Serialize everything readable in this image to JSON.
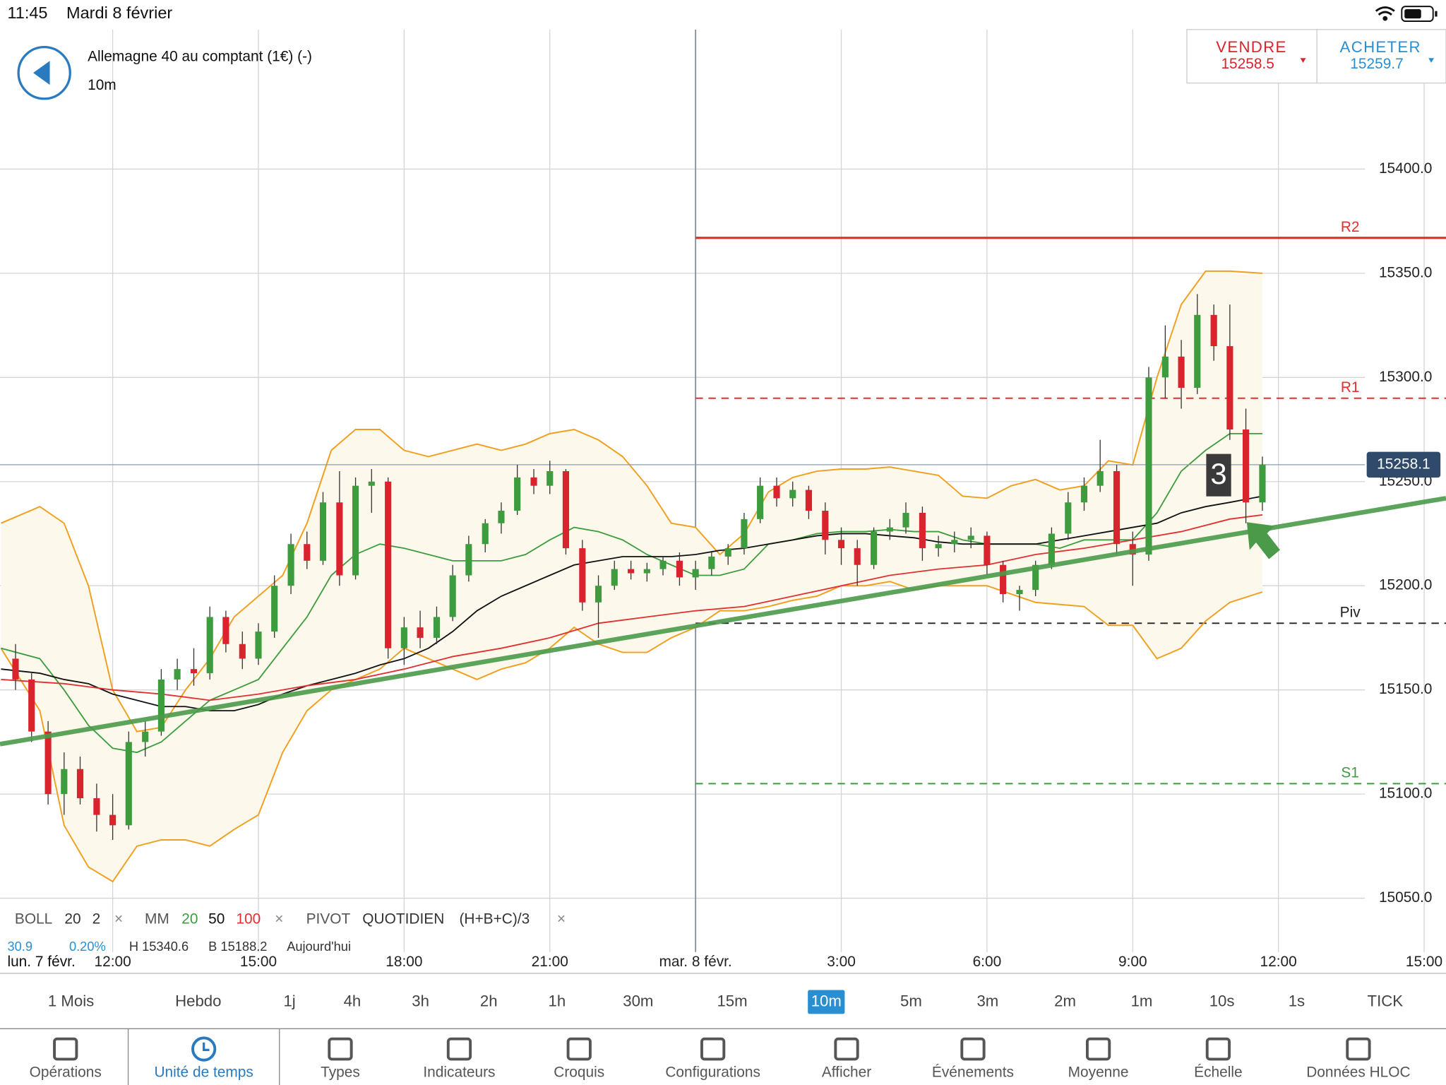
{
  "status_bar": {
    "time": "11:45",
    "date": "Mardi 8 février"
  },
  "header": {
    "instrument": "Allemagne 40 au comptant (1€) (-)",
    "timeframe": "10m"
  },
  "quote": {
    "sell_label": "VENDRE",
    "sell_price": "15258.5",
    "buy_label": "ACHETER",
    "buy_price": "15259.7"
  },
  "chart_data": {
    "type": "candlestick",
    "xlim": [
      9.68,
      39.45
    ],
    "ylim": [
      15025,
      15467
    ],
    "start_label": "lun. 7 févr.",
    "xticks": [
      {
        "value": 12,
        "label": "12:00"
      },
      {
        "value": 15,
        "label": "15:00"
      },
      {
        "value": 18,
        "label": "18:00"
      },
      {
        "value": 21,
        "label": "21:00"
      },
      {
        "value": 24,
        "label": "mar. 8 févr."
      },
      {
        "value": 27,
        "label": "3:00"
      },
      {
        "value": 30,
        "label": "6:00"
      },
      {
        "value": 33,
        "label": "9:00"
      },
      {
        "value": 36,
        "label": "12:00"
      },
      {
        "value": 39,
        "label": "15:00"
      }
    ],
    "yticks": [
      {
        "value": 15050,
        "label": "15050.0"
      },
      {
        "value": 15100,
        "label": "15100.0"
      },
      {
        "value": 15150,
        "label": "15150.0"
      },
      {
        "value": 15200,
        "label": "15200.0"
      },
      {
        "value": 15250,
        "label": "15250.0"
      },
      {
        "value": 15300,
        "label": "15300.0"
      },
      {
        "value": 15350,
        "label": "15350.0"
      },
      {
        "value": 15400,
        "label": "15400.0"
      }
    ],
    "grid": true,
    "up_color": "#3d9c3d",
    "down_color": "#d9232d",
    "x": [
      10,
      10.33,
      10.67,
      11,
      11.33,
      11.67,
      12,
      12.33,
      12.67,
      13,
      13.33,
      13.67,
      14,
      14.33,
      14.67,
      15,
      15.33,
      15.67,
      16,
      16.33,
      16.67,
      17,
      17.33,
      17.67,
      18,
      18.33,
      18.67,
      19,
      19.33,
      19.67,
      20,
      20.33,
      20.67,
      21,
      21.33,
      21.67,
      22,
      22.33,
      22.67,
      23,
      23.33,
      23.67,
      24,
      24.33,
      24.67,
      25,
      25.33,
      25.67,
      26,
      26.33,
      26.67,
      27,
      27.33,
      27.67,
      28,
      28.33,
      28.67,
      29,
      29.33,
      29.67,
      30,
      30.33,
      30.67,
      31,
      31.33,
      31.67,
      32,
      32.33,
      32.67,
      33,
      33.33,
      33.67,
      34,
      34.33,
      34.67,
      35,
      35.33,
      35.67
    ],
    "open": [
      15165,
      15155,
      15130,
      15100,
      15112,
      15098,
      15090,
      15085,
      15125,
      15130,
      15155,
      15160,
      15158,
      15185,
      15172,
      15165,
      15178,
      15200,
      15220,
      15212,
      15240,
      15205,
      15248,
      15250,
      15170,
      15180,
      15175,
      15185,
      15205,
      15220,
      15230,
      15236,
      15252,
      15248,
      15255,
      15218,
      15192,
      15200,
      15208,
      15206,
      15208,
      15212,
      15204,
      15208,
      15214,
      15218,
      15232,
      15248,
      15242,
      15246,
      15236,
      15222,
      15218,
      15210,
      15226,
      15228,
      15235,
      15218,
      15220,
      15222,
      15224,
      15210,
      15196,
      15198,
      15210,
      15225,
      15240,
      15248,
      15255,
      15220,
      15215,
      15300,
      15310,
      15295,
      15330,
      15315,
      15275,
      15240
    ],
    "high": [
      15172,
      15158,
      15135,
      15120,
      15118,
      15105,
      15100,
      15130,
      15135,
      15160,
      15165,
      15170,
      15190,
      15188,
      15178,
      15182,
      15205,
      15225,
      15226,
      15245,
      15255,
      15252,
      15256,
      15252,
      15185,
      15188,
      15190,
      15210,
      15224,
      15232,
      15240,
      15258,
      15256,
      15260,
      15256,
      15222,
      15205,
      15212,
      15212,
      15211,
      15214,
      15216,
      15212,
      15216,
      15220,
      15235,
      15252,
      15252,
      15250,
      15248,
      15240,
      15228,
      15222,
      15228,
      15232,
      15240,
      15238,
      15224,
      15226,
      15228,
      15226,
      15212,
      15200,
      15212,
      15228,
      15245,
      15252,
      15270,
      15258,
      15226,
      15305,
      15325,
      15318,
      15340,
      15335,
      15335,
      15285,
      15262
    ],
    "low": [
      15150,
      15125,
      15095,
      15090,
      15095,
      15082,
      15078,
      15083,
      15118,
      15128,
      15150,
      15152,
      15155,
      15168,
      15160,
      15162,
      15175,
      15196,
      15208,
      15210,
      15200,
      15203,
      15235,
      15165,
      15162,
      15170,
      15172,
      15183,
      15202,
      15216,
      15225,
      15234,
      15244,
      15244,
      15215,
      15188,
      15175,
      15198,
      15203,
      15202,
      15205,
      15200,
      15198,
      15205,
      15210,
      15215,
      15230,
      15238,
      15238,
      15232,
      15215,
      15210,
      15200,
      15208,
      15222,
      15225,
      15212,
      15214,
      15216,
      15218,
      15205,
      15192,
      15188,
      15195,
      15208,
      15222,
      15236,
      15245,
      15215,
      15200,
      15212,
      15290,
      15285,
      15292,
      15308,
      15270,
      15230,
      15236
    ],
    "close": [
      15155,
      15130,
      15100,
      15112,
      15098,
      15090,
      15085,
      15125,
      15130,
      15155,
      15160,
      15158,
      15185,
      15172,
      15165,
      15178,
      15200,
      15220,
      15212,
      15240,
      15205,
      15248,
      15250,
      15170,
      15180,
      15175,
      15185,
      15205,
      15220,
      15230,
      15236,
      15252,
      15248,
      15255,
      15218,
      15192,
      15200,
      15208,
      15206,
      15208,
      15212,
      15204,
      15208,
      15214,
      15218,
      15232,
      15248,
      15242,
      15246,
      15236,
      15222,
      15218,
      15210,
      15226,
      15228,
      15235,
      15218,
      15220,
      15222,
      15224,
      15210,
      15196,
      15198,
      15210,
      15225,
      15240,
      15248,
      15255,
      15220,
      15215,
      15300,
      15310,
      15295,
      15330,
      15315,
      15275,
      15240,
      15258.1
    ],
    "bollinger": {
      "color": "#f0a020",
      "fill": "#fdf8ec",
      "x": [
        9.7,
        10.5,
        11,
        11.5,
        12,
        12.5,
        13,
        13.5,
        14,
        14.5,
        15,
        15.5,
        16,
        16.5,
        17,
        17.5,
        18,
        18.5,
        19,
        19.5,
        20,
        20.5,
        21,
        21.5,
        22,
        22.5,
        23,
        23.5,
        24,
        24.5,
        25,
        25.5,
        26,
        26.5,
        27,
        27.5,
        28,
        28.5,
        29,
        29.5,
        30,
        30.5,
        31,
        31.5,
        32,
        32.5,
        33,
        33.5,
        34,
        34.5,
        35,
        35.67
      ],
      "upper": [
        15230,
        15238,
        15230,
        15200,
        15150,
        15130,
        15132,
        15150,
        15165,
        15185,
        15195,
        15205,
        15230,
        15265,
        15275,
        15275,
        15265,
        15262,
        15265,
        15268,
        15265,
        15268,
        15273,
        15275,
        15270,
        15262,
        15248,
        15230,
        15228,
        15215,
        15225,
        15245,
        15252,
        15255,
        15256,
        15256,
        15257,
        15255,
        15253,
        15243,
        15242,
        15248,
        15251,
        15246,
        15248,
        15260,
        15258,
        15300,
        15335,
        15351,
        15351,
        15350
      ],
      "lower": [
        15170,
        15140,
        15085,
        15065,
        15058,
        15075,
        15078,
        15078,
        15075,
        15083,
        15090,
        15120,
        15140,
        15150,
        15155,
        15160,
        15170,
        15165,
        15160,
        15155,
        15160,
        15163,
        15170,
        15180,
        15172,
        15168,
        15168,
        15175,
        15180,
        15188,
        15188,
        15190,
        15193,
        15195,
        15200,
        15200,
        15202,
        15198,
        15200,
        15200,
        15200,
        15196,
        15192,
        15191,
        15190,
        15181,
        15181,
        15165,
        15170,
        15183,
        15192,
        15197
      ]
    },
    "moving_averages": [
      {
        "color": "#3d9c3d",
        "x": [
          9.7,
          10.5,
          11,
          11.5,
          12,
          12.5,
          13,
          13.5,
          14,
          14.5,
          15,
          15.5,
          16,
          16.5,
          17,
          17.5,
          18,
          18.5,
          19,
          19.5,
          20,
          20.5,
          21,
          21.5,
          22,
          22.5,
          23,
          23.5,
          24,
          24.5,
          25,
          25.5,
          26,
          26.5,
          27,
          27.5,
          28,
          28.5,
          29,
          29.5,
          30,
          30.5,
          31,
          31.5,
          32,
          32.5,
          33,
          33.5,
          34,
          34.5,
          35,
          35.67
        ],
        "values": [
          15170,
          15165,
          15150,
          15133,
          15122,
          15120,
          15125,
          15135,
          15145,
          15150,
          15155,
          15170,
          15185,
          15205,
          15215,
          15220,
          15218,
          15215,
          15212,
          15212,
          15212,
          15215,
          15222,
          15228,
          15226,
          15222,
          15215,
          15210,
          15205,
          15205,
          15208,
          15220,
          15222,
          15225,
          15226,
          15226,
          15227,
          15226,
          15226,
          15222,
          15220,
          15220,
          15220,
          15218,
          15222,
          15222,
          15222,
          15235,
          15255,
          15265,
          15273,
          15273
        ]
      },
      {
        "color": "#111111",
        "x": [
          9.7,
          10.5,
          11,
          11.5,
          12,
          12.5,
          13,
          13.5,
          14,
          14.5,
          15,
          15.5,
          16,
          16.5,
          17,
          17.5,
          18,
          18.5,
          19,
          19.5,
          20,
          20.5,
          21,
          21.5,
          22,
          22.5,
          23,
          23.5,
          24,
          24.5,
          25,
          25.5,
          26,
          26.5,
          27,
          27.5,
          28,
          28.5,
          29,
          29.5,
          30,
          30.5,
          31,
          31.5,
          32,
          32.5,
          33,
          33.5,
          34,
          34.5,
          35,
          35.67
        ],
        "values": [
          15160,
          15158,
          15155,
          15153,
          15148,
          15145,
          15142,
          15142,
          15140,
          15140,
          15143,
          15148,
          15152,
          15155,
          15158,
          15162,
          15165,
          15170,
          15178,
          15188,
          15195,
          15200,
          15205,
          15210,
          15212,
          15214,
          15214,
          15214,
          15215,
          15217,
          15218,
          15220,
          15222,
          15224,
          15225,
          15225,
          15224,
          15223,
          15221,
          15220,
          15220,
          15220,
          15220,
          15222,
          15224,
          15226,
          15228,
          15230,
          15235,
          15238,
          15240,
          15243
        ]
      },
      {
        "color": "#e03030",
        "x": [
          9.7,
          11,
          12,
          13,
          14,
          15,
          16,
          17,
          18,
          19,
          20,
          21,
          22,
          23,
          24,
          25,
          26,
          27,
          28,
          29,
          30,
          31,
          32,
          33,
          34,
          35,
          35.67
        ],
        "values": [
          15155,
          15153,
          15150,
          15148,
          15145,
          15148,
          15152,
          15155,
          15160,
          15166,
          15170,
          15175,
          15182,
          15185,
          15188,
          15190,
          15195,
          15200,
          15205,
          15208,
          15210,
          15215,
          15218,
          15222,
          15226,
          15232,
          15234
        ]
      }
    ],
    "pivot_start": 24,
    "pivots": [
      {
        "label": "R2",
        "value": 15367,
        "color": "#e03030",
        "dashed": false
      },
      {
        "label": "R1",
        "value": 15290,
        "color": "#e03030",
        "dashed": true
      },
      {
        "label": "Piv",
        "value": 15182,
        "color": "#222222",
        "dashed": true
      },
      {
        "label": "S1",
        "value": 15105,
        "color": "#3d9c3d",
        "dashed": true
      }
    ],
    "trendline": {
      "color": "#4a9a4a",
      "x": [
        9.68,
        39.45
      ],
      "values": [
        15124,
        15242
      ]
    },
    "last_price": 15258.1,
    "annotation": "3"
  },
  "indicators": {
    "row": [
      "BOLL",
      "20",
      "2",
      "×",
      "MM",
      "20",
      "50",
      "100",
      "×",
      "PIVOT",
      "QUOTIDIEN",
      "(H+B+C)/3",
      "×"
    ],
    "values_row": [
      "30.9",
      "0.20%",
      "H 15340.6",
      "B 15188.2",
      "Aujourd'hui"
    ]
  },
  "timeframes": {
    "items": [
      "1 Mois",
      "Hebdo",
      "1j",
      "4h",
      "3h",
      "2h",
      "1h",
      "30m",
      "15m",
      "10m",
      "5m",
      "3m",
      "2m",
      "1m",
      "10s",
      "1s",
      "TICK"
    ],
    "selected": 9
  },
  "toolbar": {
    "items": [
      "Opérations",
      "Unité de temps",
      "Types",
      "Indicateurs",
      "Croquis",
      "Configurations",
      "Afficher",
      "Événements",
      "Moyenne",
      "Échelle",
      "Données HLOC"
    ],
    "selected": 1
  }
}
